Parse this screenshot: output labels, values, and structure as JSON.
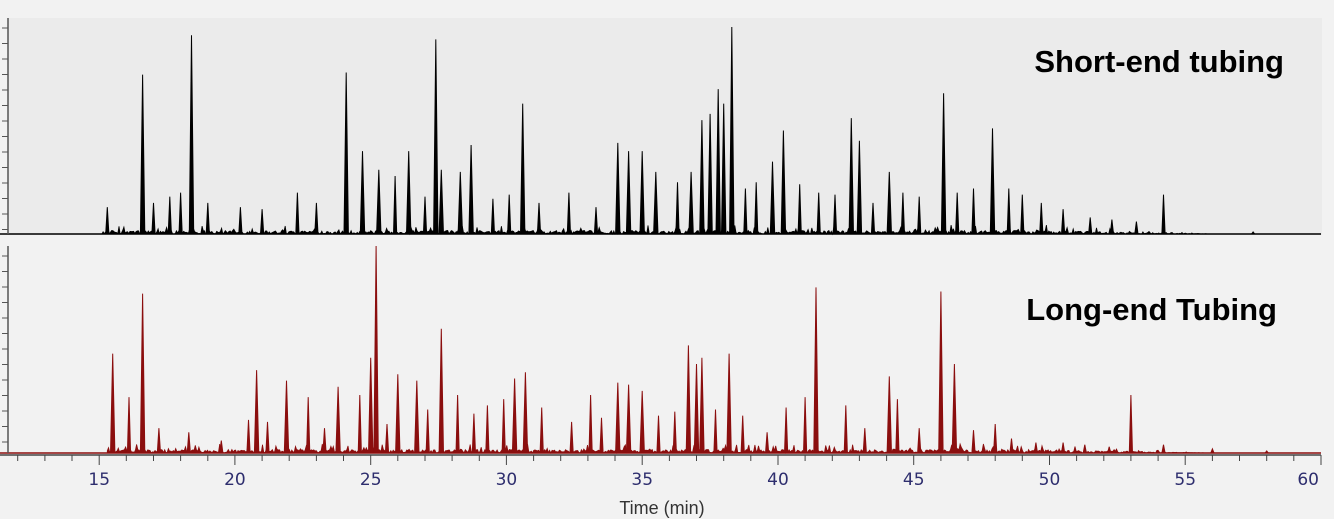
{
  "chart_data": [
    {
      "type": "line",
      "title": "Short-end tubing",
      "xlabel": "Time (min)",
      "xlim": [
        10,
        60
      ],
      "ylabel": "",
      "ylim": [
        0,
        100
      ],
      "color": "#000000",
      "series": [
        {
          "x": [
            15.3,
            16.6,
            17.0,
            17.6,
            18.0,
            18.4,
            19.0,
            20.2,
            21.0,
            22.3,
            23.0,
            24.1,
            24.7,
            25.3,
            25.9,
            26.4,
            27.0,
            27.4,
            27.6,
            28.3,
            28.7,
            29.5,
            30.1,
            30.6,
            31.2,
            32.3,
            33.3,
            34.1,
            34.5,
            35.0,
            35.5,
            36.3,
            36.8,
            37.2,
            37.5,
            37.8,
            38.0,
            38.3,
            38.8,
            39.2,
            39.8,
            40.2,
            40.8,
            41.5,
            42.1,
            42.7,
            43.0,
            43.5,
            44.1,
            44.6,
            45.2,
            46.1,
            46.6,
            47.2,
            47.9,
            48.5,
            49.0,
            49.7,
            50.5,
            51.5,
            52.3,
            53.2,
            54.2,
            57.5
          ],
          "y": [
            13,
            77,
            15,
            18,
            20,
            96,
            15,
            13,
            12,
            20,
            15,
            78,
            40,
            31,
            28,
            40,
            18,
            94,
            31,
            30,
            43,
            17,
            19,
            63,
            15,
            20,
            13,
            44,
            40,
            40,
            30,
            25,
            30,
            55,
            58,
            70,
            63,
            100,
            22,
            25,
            35,
            50,
            24,
            20,
            19,
            56,
            45,
            15,
            30,
            20,
            18,
            68,
            20,
            22,
            51,
            22,
            19,
            15,
            12,
            8,
            7,
            6,
            19,
            1
          ]
        }
      ]
    },
    {
      "type": "line",
      "title": "Long-end Tubing",
      "xlabel": "Time (min)",
      "xlim": [
        10,
        60
      ],
      "ylabel": "",
      "ylim": [
        0,
        100
      ],
      "color": "#8b0e0e",
      "series": [
        {
          "x": [
            15.5,
            16.1,
            16.6,
            17.2,
            18.3,
            19.5,
            20.5,
            20.8,
            21.2,
            21.9,
            22.7,
            23.3,
            23.8,
            24.6,
            25.0,
            25.2,
            25.6,
            26.0,
            26.7,
            27.1,
            27.6,
            28.2,
            28.8,
            29.3,
            29.9,
            30.3,
            30.7,
            31.3,
            32.4,
            33.1,
            33.5,
            34.1,
            34.5,
            35.0,
            35.6,
            36.2,
            36.7,
            37.0,
            37.2,
            37.7,
            38.2,
            38.7,
            39.6,
            40.3,
            41.0,
            41.4,
            42.5,
            43.2,
            44.1,
            44.4,
            45.2,
            46.0,
            46.5,
            47.2,
            48.0,
            48.6,
            49.5,
            50.5,
            51.3,
            52.2,
            53.0,
            54.2,
            56.0,
            58.0
          ],
          "y": [
            48,
            27,
            77,
            12,
            10,
            6,
            16,
            40,
            15,
            35,
            27,
            12,
            32,
            28,
            46,
            100,
            14,
            38,
            35,
            21,
            60,
            28,
            19,
            23,
            26,
            36,
            39,
            22,
            15,
            28,
            17,
            34,
            33,
            30,
            18,
            20,
            52,
            43,
            46,
            21,
            48,
            18,
            10,
            22,
            27,
            80,
            23,
            12,
            37,
            26,
            12,
            78,
            43,
            11,
            14,
            7,
            5,
            5,
            4,
            3,
            28,
            4,
            2,
            1
          ]
        }
      ]
    }
  ]
}
